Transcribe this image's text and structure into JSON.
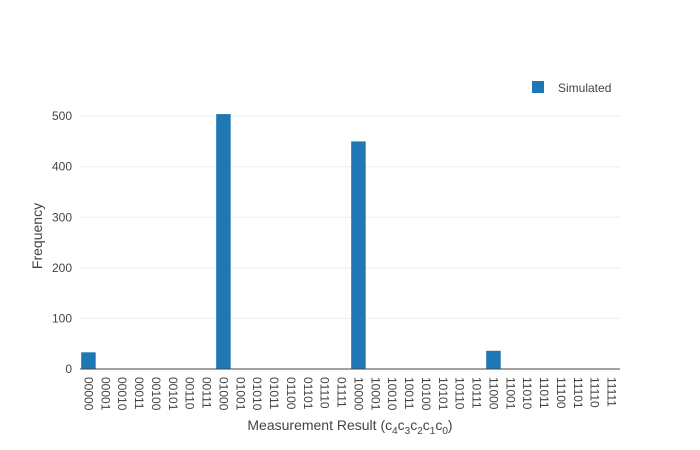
{
  "chart_data": {
    "type": "bar",
    "title": "",
    "xlabel": "Measurement Result (c4c3c2c1c0)",
    "ylabel": "Frequency",
    "ylim": [
      0,
      520
    ],
    "yticks": [
      0,
      100,
      200,
      300,
      400,
      500
    ],
    "grid": true,
    "legend_position": "top-right",
    "colors": {
      "bar": "#1f77b4",
      "grid": "#eeeeee",
      "axis": "#444444",
      "text": "#444444"
    },
    "categories": [
      "00000",
      "00001",
      "00010",
      "00011",
      "00100",
      "00101",
      "00110",
      "00111",
      "01000",
      "01001",
      "01010",
      "01011",
      "01100",
      "01101",
      "01110",
      "01111",
      "10000",
      "10001",
      "10010",
      "10011",
      "10100",
      "10101",
      "10110",
      "10111",
      "11000",
      "11001",
      "11010",
      "11011",
      "11100",
      "11101",
      "11110",
      "11111"
    ],
    "series": [
      {
        "name": "Simulated",
        "values": [
          33,
          0,
          0,
          0,
          0,
          0,
          0,
          0,
          504,
          0,
          0,
          0,
          0,
          0,
          0,
          0,
          450,
          0,
          0,
          0,
          0,
          0,
          0,
          0,
          36,
          0,
          0,
          0,
          0,
          0,
          0,
          0
        ]
      }
    ]
  }
}
